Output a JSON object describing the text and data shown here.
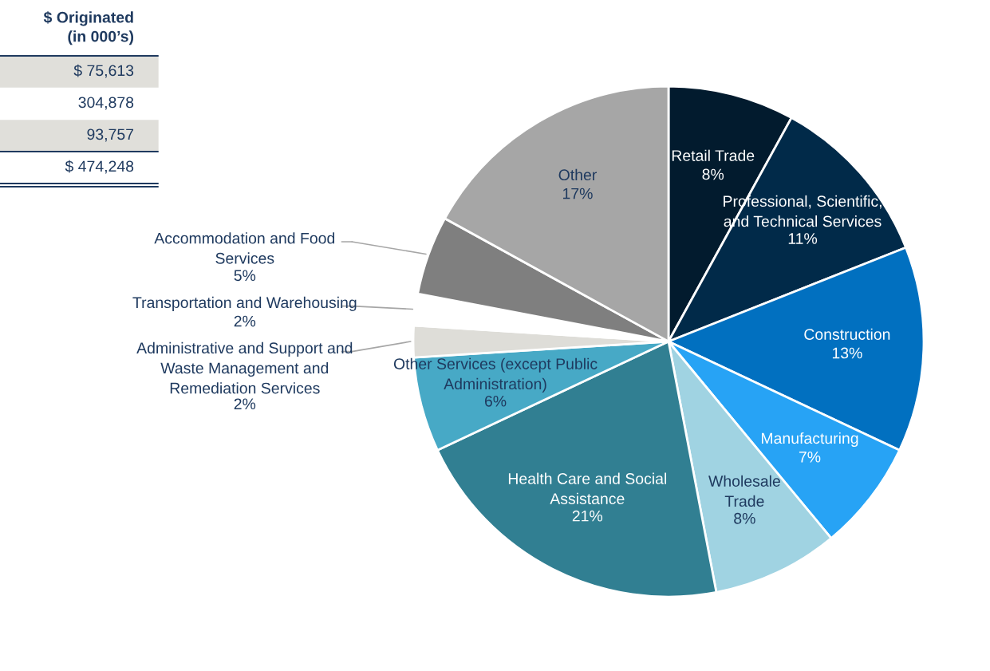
{
  "chart_data": {
    "type": "pie",
    "categories": [
      "Retail Trade",
      "Professional, Scientific,\nand Technical Services",
      "Construction",
      "Manufacturing",
      "Wholesale\nTrade",
      "Health Care and Social\nAssistance",
      "Other Services (except Public\nAdministration)",
      "Administrative and Support and\nWaste Management and\nRemediation Services",
      "Transportation and Warehousing",
      "Accommodation and Food\nServices",
      "Other"
    ],
    "values": [
      8,
      11,
      13,
      7,
      8,
      21,
      6,
      2,
      2,
      5,
      17
    ],
    "colors": [
      "#021b2e",
      "#012a49",
      "#0170c0",
      "#27a3f5",
      "#a0d3e2",
      "#317f92",
      "#47a9c6",
      "#deddd8",
      "#ffffff",
      "#7f7f7f",
      "#a6a6a6"
    ],
    "value_labels": [
      "8%",
      "11%",
      "13%",
      "7%",
      "8%",
      "21%",
      "6%",
      "2%",
      "2%",
      "5%",
      "17%"
    ],
    "annotations": [
      "$ Originated\n(in 000’s)",
      "$ 75,613",
      "304,878",
      "93,757",
      "$ 474,248"
    ]
  }
}
